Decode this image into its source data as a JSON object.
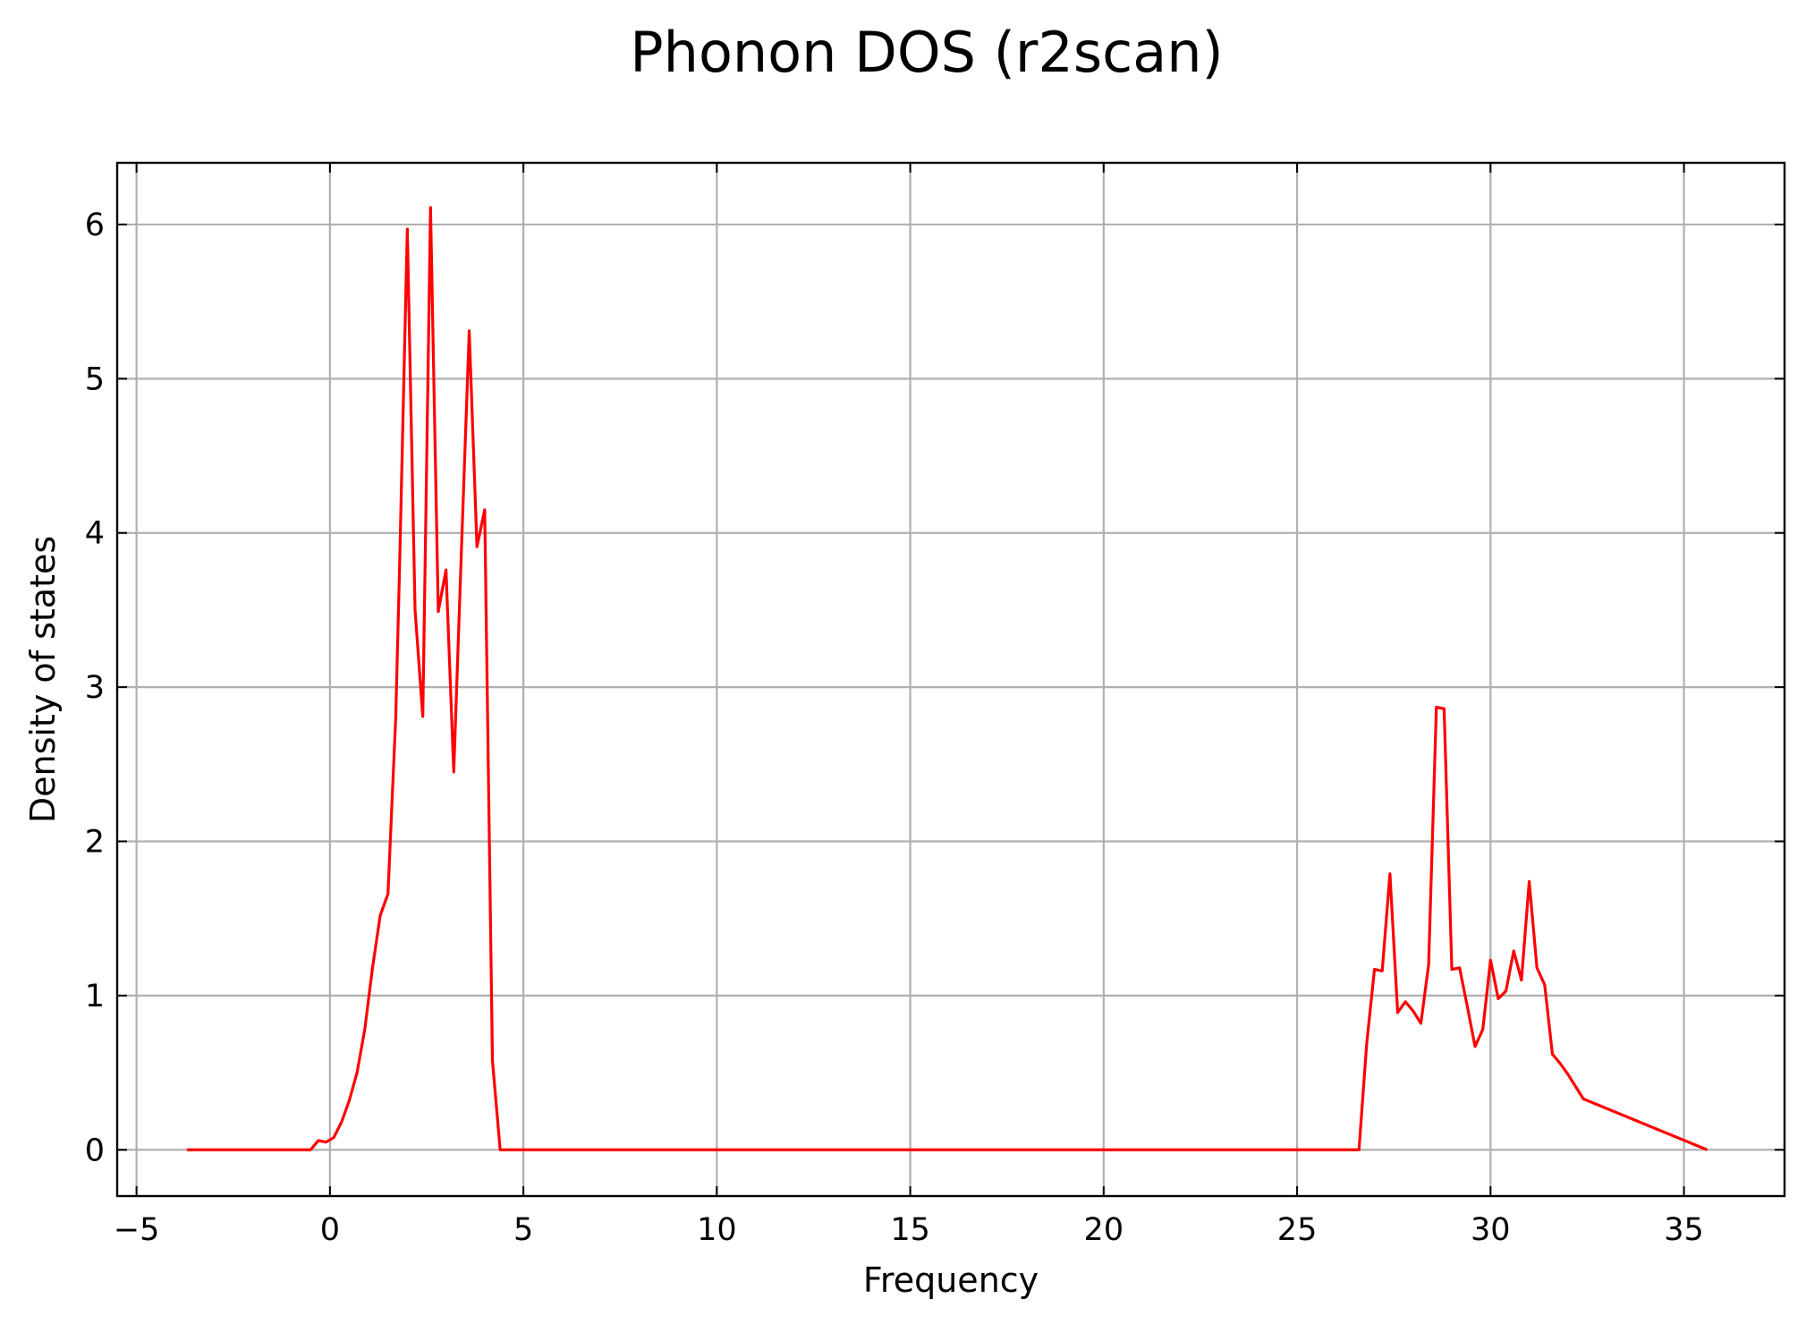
{
  "chart_data": {
    "type": "line",
    "title": "Phonon DOS (r2scan)",
    "xlabel": "Frequency",
    "ylabel": "Density of states",
    "xlim": [
      -5.5,
      37.6
    ],
    "ylim": [
      -0.3,
      6.4
    ],
    "xticks": [
      -5,
      0,
      5,
      10,
      15,
      20,
      25,
      30,
      35
    ],
    "xtick_labels": [
      "−5",
      "0",
      "5",
      "10",
      "15",
      "20",
      "25",
      "30",
      "35"
    ],
    "yticks": [
      0,
      1,
      2,
      3,
      4,
      5,
      6
    ],
    "ytick_labels": [
      "0",
      "1",
      "2",
      "3",
      "4",
      "5",
      "6"
    ],
    "grid": true,
    "legend": "none",
    "series": [
      {
        "color": "#ff0000",
        "x": [
          -3.7,
          -0.5,
          -0.3,
          -0.1,
          0.1,
          0.3,
          0.5,
          0.7,
          0.9,
          1.1,
          1.3,
          1.5,
          1.7,
          1.8,
          2.0,
          2.2,
          2.4,
          2.6,
          2.8,
          3.0,
          3.2,
          3.4,
          3.6,
          3.8,
          4.0,
          4.2,
          4.4,
          26.6,
          26.8,
          27.0,
          27.2,
          27.4,
          27.6,
          27.8,
          28.0,
          28.2,
          28.4,
          28.6,
          28.8,
          29.0,
          29.2,
          29.4,
          29.6,
          29.8,
          30.0,
          30.2,
          30.4,
          30.6,
          30.8,
          31.0,
          31.2,
          31.4,
          31.6,
          31.8,
          32.0,
          32.2,
          32.4,
          35.6
        ],
        "y": [
          0,
          0,
          0.06,
          0.05,
          0.08,
          0.18,
          0.32,
          0.5,
          0.78,
          1.18,
          1.52,
          1.66,
          2.8,
          3.78,
          5.97,
          3.5,
          2.81,
          6.11,
          3.49,
          3.76,
          2.45,
          3.9,
          5.31,
          3.91,
          4.15,
          0.58,
          0,
          0,
          0.69,
          1.17,
          1.16,
          1.79,
          0.89,
          0.96,
          0.9,
          0.82,
          1.2,
          2.87,
          2.86,
          1.17,
          1.18,
          0.93,
          0.67,
          0.78,
          1.23,
          0.98,
          1.03,
          1.29,
          1.1,
          1.74,
          1.18,
          1.07,
          0.62,
          0.56,
          0.49,
          0.41,
          0.33,
          0
        ]
      }
    ]
  }
}
